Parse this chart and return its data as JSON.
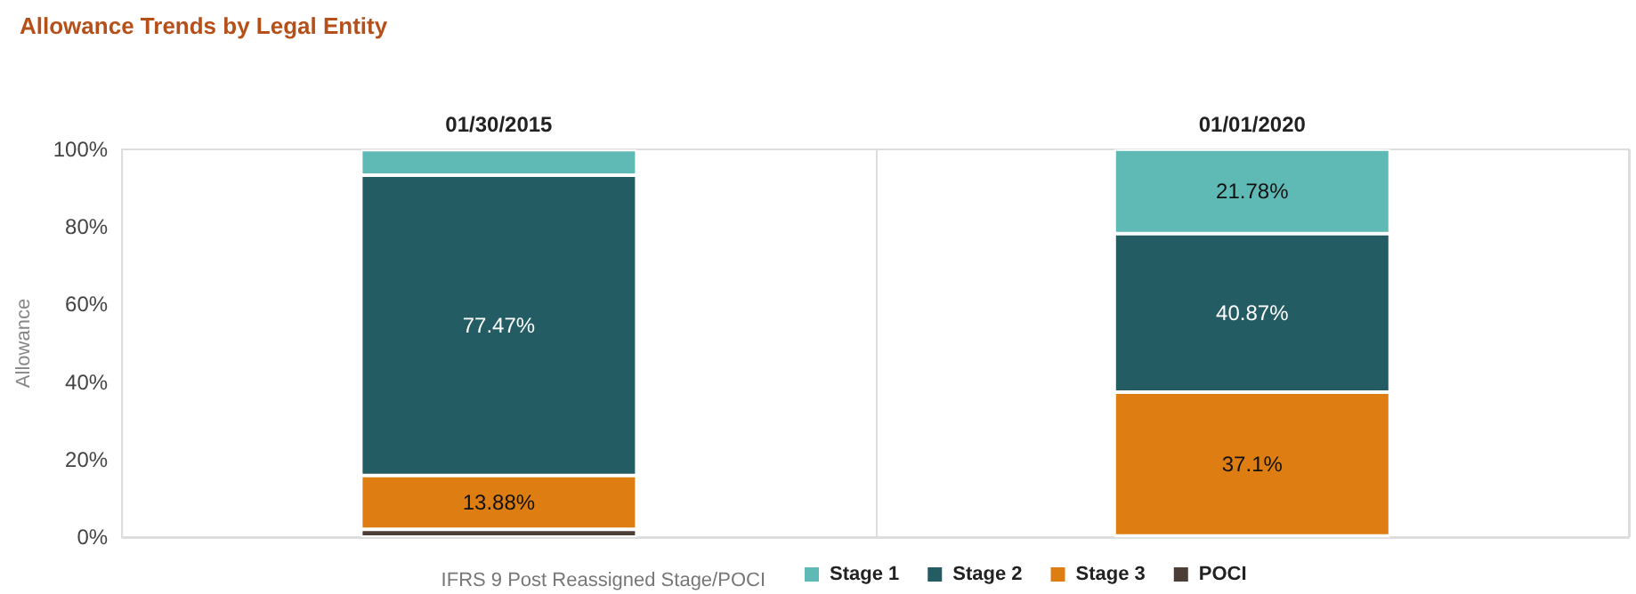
{
  "chart_data": {
    "type": "bar",
    "title": "Allowance Trends by Legal Entity",
    "ylabel": "Allowance",
    "legend_title": "IFRS 9 Post Reassigned Stage/POCI",
    "categories": [
      "01/30/2015",
      "01/01/2020"
    ],
    "stacked": true,
    "legend": "bottom",
    "ylim": [
      0,
      100
    ],
    "yticks": [
      {
        "value": 0,
        "label": "0%"
      },
      {
        "value": 20,
        "label": "20%"
      },
      {
        "value": 40,
        "label": "40%"
      },
      {
        "value": 60,
        "label": "60%"
      },
      {
        "value": 80,
        "label": "80%"
      },
      {
        "value": 100,
        "label": "100%"
      }
    ],
    "series": [
      {
        "name": "POCI",
        "color": "#4a3e37",
        "values": [
          2,
          0.3
        ],
        "value_labels": [
          null,
          null
        ]
      },
      {
        "name": "Stage 3",
        "color": "#de7e12",
        "values": [
          13.88,
          37.1
        ],
        "value_labels": [
          "13.88%",
          "37.1%"
        ]
      },
      {
        "name": "Stage 2",
        "color": "#245c64",
        "values": [
          77.47,
          40.87
        ],
        "value_labels": [
          "77.47%",
          "40.87%"
        ]
      },
      {
        "name": "Stage 1",
        "color": "#5fbab5",
        "values": [
          6.6,
          21.78
        ],
        "value_labels": [
          null,
          "21.78%"
        ]
      }
    ]
  }
}
